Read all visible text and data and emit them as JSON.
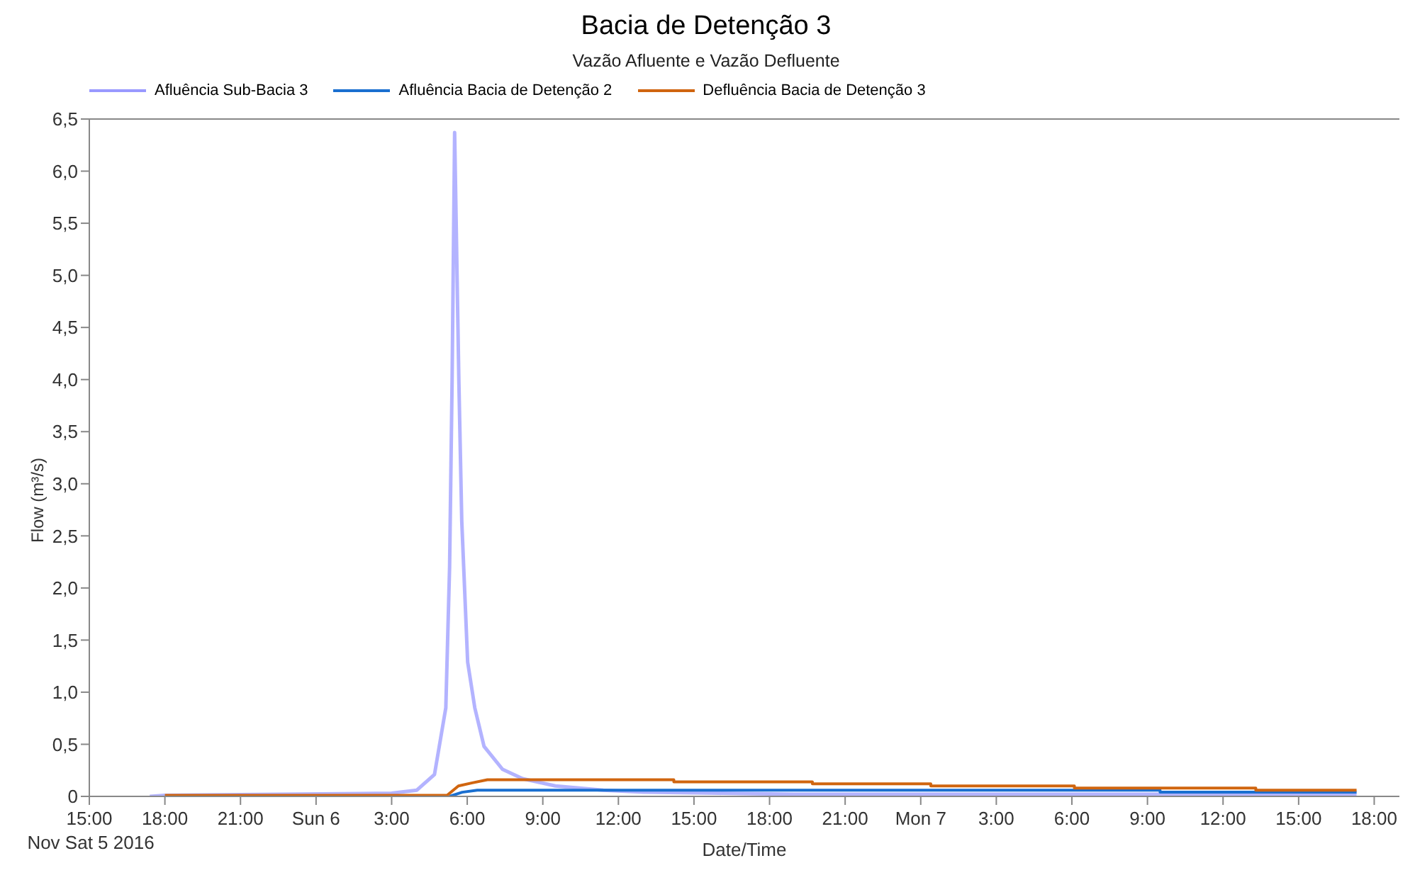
{
  "chart_data": {
    "type": "line",
    "title": "Bacia de Detenção 3",
    "subtitle": "Vazão Afluente e Vazão Defluente",
    "xlabel": "Date/Time",
    "ylabel": "Flow (m³/s)",
    "xlim": [
      "2016-11-05T15:00",
      "2016-11-07T19:00"
    ],
    "xticks": [
      {
        "value": "2016-11-05T15:00",
        "label": "15:00\nNov Sat 5 2016"
      },
      {
        "value": "2016-11-05T18:00",
        "label": "18:00"
      },
      {
        "value": "2016-11-05T21:00",
        "label": "21:00"
      },
      {
        "value": "2016-11-06T00:00",
        "label": "Sun 6"
      },
      {
        "value": "2016-11-06T03:00",
        "label": "3:00"
      },
      {
        "value": "2016-11-06T06:00",
        "label": "6:00"
      },
      {
        "value": "2016-11-06T09:00",
        "label": "9:00"
      },
      {
        "value": "2016-11-06T12:00",
        "label": "12:00"
      },
      {
        "value": "2016-11-06T15:00",
        "label": "15:00"
      },
      {
        "value": "2016-11-06T18:00",
        "label": "18:00"
      },
      {
        "value": "2016-11-06T21:00",
        "label": "21:00"
      },
      {
        "value": "2016-11-07T00:00",
        "label": "Mon 7"
      },
      {
        "value": "2016-11-07T03:00",
        "label": "3:00"
      },
      {
        "value": "2016-11-07T06:00",
        "label": "6:00"
      },
      {
        "value": "2016-11-07T09:00",
        "label": "9:00"
      },
      {
        "value": "2016-11-07T12:00",
        "label": "12:00"
      },
      {
        "value": "2016-11-07T15:00",
        "label": "15:00"
      },
      {
        "value": "2016-11-07T18:00",
        "label": "18:00"
      }
    ],
    "ylim": [
      0,
      6.5
    ],
    "yticks": [
      0,
      {
        "value": 0.5,
        "label": "0,5"
      },
      {
        "value": 1,
        "label": "1,0"
      },
      {
        "value": 1.5,
        "label": "1,5"
      },
      {
        "value": 2,
        "label": "2,0"
      },
      {
        "value": 2.5,
        "label": "2,5"
      },
      {
        "value": 3,
        "label": "3,0"
      },
      {
        "value": 3.5,
        "label": "3,5"
      },
      {
        "value": 4,
        "label": "4,0"
      },
      {
        "value": 4.5,
        "label": "4,5"
      },
      {
        "value": 5,
        "label": "5,0"
      },
      {
        "value": 5.5,
        "label": "5,5"
      },
      {
        "value": 6,
        "label": "6,0"
      },
      {
        "value": 6.5,
        "label": "6,5"
      }
    ],
    "grid": false,
    "legend": "top left",
    "marker": "none",
    "line_style": "solid",
    "series": [
      {
        "name": "Afluência Sub-Bacia 3",
        "color": "#9999ff",
        "x": [
          "2016-11-05T17:24",
          "2016-11-05T18:00",
          "2016-11-06T03:00",
          "2016-11-06T04:00",
          "2016-11-06T04:42",
          "2016-11-06T05:09",
          "2016-11-06T05:18",
          "2016-11-06T05:24",
          "2016-11-06T05:30",
          "2016-11-06T05:40",
          "2016-11-06T05:47",
          "2016-11-06T06:01",
          "2016-11-06T06:18",
          "2016-11-06T06:40",
          "2016-11-06T07:24",
          "2016-11-06T08:12",
          "2016-11-06T09:30",
          "2016-11-06T11:24",
          "2016-11-06T13:00",
          "2016-11-06T16:00",
          "2016-11-06T19:00",
          "2016-11-07T17:18"
        ],
        "values": [
          0,
          0.01,
          0.03,
          0.06,
          0.21,
          0.85,
          2.2,
          4.0,
          6.37,
          4.0,
          2.64,
          1.29,
          0.85,
          0.48,
          0.26,
          0.17,
          0.1,
          0.06,
          0.04,
          0.03,
          0.02,
          0.02
        ]
      },
      {
        "name": "Afluência Bacia de Detenção 2",
        "color": "#1a6fd0",
        "x": [
          "2016-11-06T05:18",
          "2016-11-06T05:48",
          "2016-11-06T06:24",
          "2016-11-07T09:30",
          "2016-11-07T09:30",
          "2016-11-07T17:18"
        ],
        "values": [
          0,
          0.04,
          0.06,
          0.06,
          0.04,
          0.04
        ]
      },
      {
        "name": "Defluência Bacia de Detenção 3",
        "color": "#d0650f",
        "x": [
          "2016-11-05T18:00",
          "2016-11-06T05:12",
          "2016-11-06T05:39",
          "2016-11-06T06:12",
          "2016-11-06T06:48",
          "2016-11-06T14:12",
          "2016-11-06T14:12",
          "2016-11-06T19:42",
          "2016-11-06T19:42",
          "2016-11-07T00:24",
          "2016-11-07T00:24",
          "2016-11-07T06:06",
          "2016-11-07T06:06",
          "2016-11-07T13:18",
          "2016-11-07T13:18",
          "2016-11-07T17:18"
        ],
        "values": [
          0.01,
          0.01,
          0.1,
          0.13,
          0.16,
          0.16,
          0.14,
          0.14,
          0.12,
          0.12,
          0.1,
          0.1,
          0.08,
          0.08,
          0.06,
          0.06
        ]
      }
    ]
  }
}
